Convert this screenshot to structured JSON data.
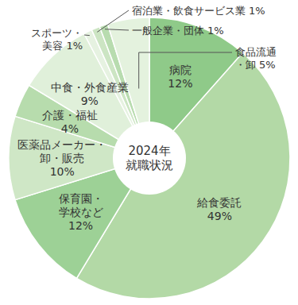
{
  "chart_data": {
    "type": "pie",
    "title": "2024年\n就職状況",
    "categories": [
      "病院",
      "給食委託",
      "保育園・\n学校など",
      "医薬品メーカー・\n卸・販売",
      "介護・福祉",
      "中食・外食産業",
      "スポーツ・\n美容",
      "宿泊業・飲食サービス業",
      "一般企業・団体",
      "食品流通\n・卸"
    ],
    "values": [
      12,
      49,
      12,
      10,
      4,
      9,
      1,
      1,
      1,
      5
    ],
    "value_labels": [
      "12%",
      "49%",
      "12%",
      "10%",
      "4%",
      "9%",
      "1%",
      "1%",
      "1%",
      "5%"
    ],
    "colors": [
      "#8fca89",
      "#b3d9a6",
      "#9dd196",
      "#cfe7c6",
      "#b7dcad",
      "#e0f0da",
      "#e6f2e1",
      "#cce5c3",
      "#b8dcaf",
      "#e4f2de"
    ],
    "data_labels": true
  }
}
